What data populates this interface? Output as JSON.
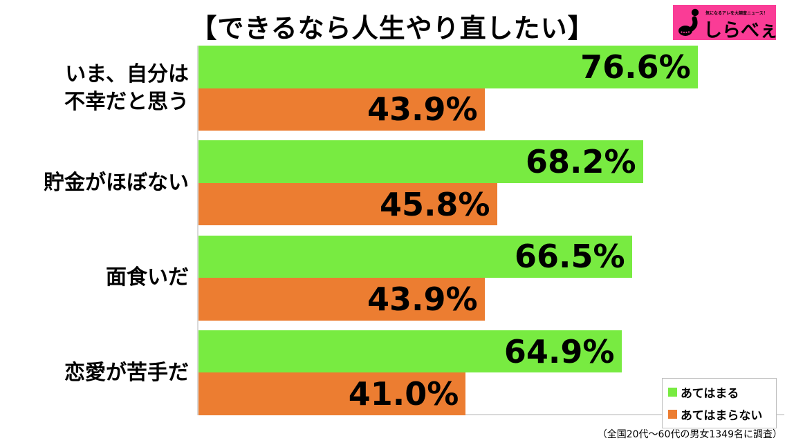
{
  "title": "【できるなら人生やり直したい】",
  "logo": {
    "tagline": "気になるアレを大調査ニュース！",
    "brand": "しらべぇ",
    "bg_color": "#fa3c96"
  },
  "chart_data": {
    "type": "bar",
    "orientation": "horizontal",
    "title": "【できるなら人生やり直したい】",
    "categories": [
      "いま、自分は\n不幸だと思う",
      "貯金がほぼない",
      "面食いだ",
      "恋愛が苦手だ"
    ],
    "series": [
      {
        "name": "あてはまる",
        "color": "#78eb41",
        "values": [
          76.6,
          68.2,
          66.5,
          64.9
        ],
        "labels": [
          "76.6%",
          "68.2%",
          "66.5%",
          "64.9%"
        ]
      },
      {
        "name": "あてはまらない",
        "color": "#ec7d31",
        "values": [
          43.9,
          45.8,
          43.9,
          41.0
        ],
        "labels": [
          "43.9%",
          "45.8%",
          "43.9%",
          "41.0%"
        ]
      }
    ],
    "value_suffix": "%",
    "xlim": [
      0,
      90
    ],
    "grid": false,
    "legend_position": "bottom-right",
    "axis_color": "#d9d9d9"
  },
  "footnote": "（全国20代～60代の男女1349名に調査）"
}
